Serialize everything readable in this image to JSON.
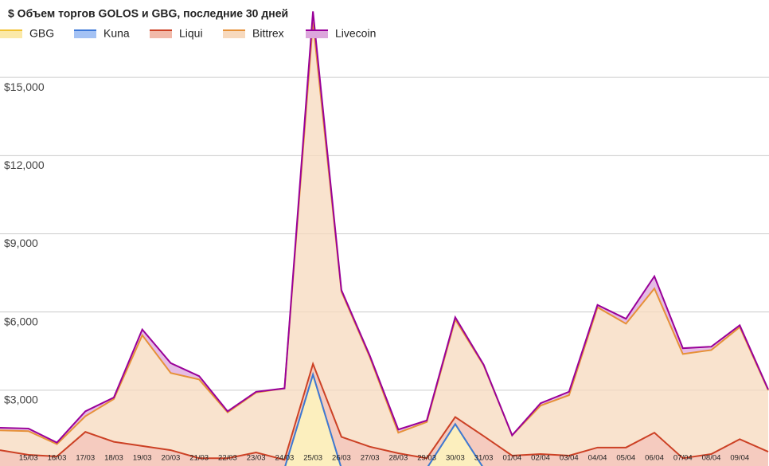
{
  "chart_data": {
    "type": "stacked-area",
    "title": "$ Объем торгов GOLOS и GBG, последние 30 дней",
    "categories": [
      null,
      "15/03",
      "16/03",
      "17/03",
      "18/03",
      "19/03",
      "20/03",
      "21/03",
      "22/03",
      "23/03",
      "24/03",
      "25/03",
      "26/03",
      "27/03",
      "28/03",
      "29/03",
      "30/03",
      "31/03",
      "01/04",
      "02/04",
      "03/04",
      "04/04",
      "05/04",
      "06/04",
      "07/04",
      "08/04",
      "09/04",
      null
    ],
    "series": [
      {
        "name": "GBG",
        "color": "#f1c232",
        "fill": "#fbe9a8",
        "values": [
          0,
          0,
          0,
          0,
          0,
          0,
          0,
          0,
          0,
          0,
          0,
          3600,
          0,
          0,
          0,
          0,
          1700,
          0,
          0,
          0,
          0,
          0,
          0,
          0,
          0,
          0,
          0,
          0
        ]
      },
      {
        "name": "Kuna",
        "color": "#3c78d8",
        "fill": "#a4c2f4",
        "values": [
          0,
          0,
          0,
          0,
          0,
          0,
          0,
          0,
          0,
          0,
          0,
          0,
          0,
          0,
          0,
          0,
          0,
          0,
          0,
          0,
          0,
          0,
          0,
          0,
          0,
          0,
          0,
          0
        ]
      },
      {
        "name": "Liqui",
        "color": "#cc4125",
        "fill": "#f1b9a9",
        "values": [
          700,
          520,
          460,
          1400,
          1020,
          860,
          700,
          390,
          390,
          610,
          330,
          410,
          1210,
          830,
          580,
          390,
          270,
          1240,
          490,
          550,
          490,
          800,
          800,
          1370,
          390,
          550,
          1120,
          640
        ]
      },
      {
        "name": "Bittrex",
        "color": "#e69138",
        "fill": "#f7d9bd",
        "values": [
          760,
          910,
          470,
          600,
          1640,
          4250,
          2960,
          3020,
          1760,
          2300,
          2740,
          13110,
          5570,
          3430,
          790,
          1390,
          3740,
          2710,
          780,
          1860,
          2320,
          5380,
          4750,
          5530,
          4000,
          3990,
          4300,
          2360
        ]
      },
      {
        "name": "Livecoin",
        "color": "#990099",
        "fill": "#dca6dc",
        "values": [
          100,
          100,
          60,
          190,
          60,
          220,
          380,
          130,
          40,
          30,
          0,
          410,
          60,
          60,
          120,
          60,
          90,
          30,
          0,
          90,
          130,
          90,
          190,
          470,
          220,
          130,
          70,
          30
        ]
      }
    ],
    "ylim": [
      0,
      18000
    ],
    "yticks": [
      {
        "value": 3000,
        "label": "$3,000"
      },
      {
        "value": 6000,
        "label": "$6,000"
      },
      {
        "value": 9000,
        "label": "$9,000"
      },
      {
        "value": 12000,
        "label": "$12,000"
      },
      {
        "value": 15000,
        "label": "$15,000"
      }
    ],
    "grid": true
  }
}
